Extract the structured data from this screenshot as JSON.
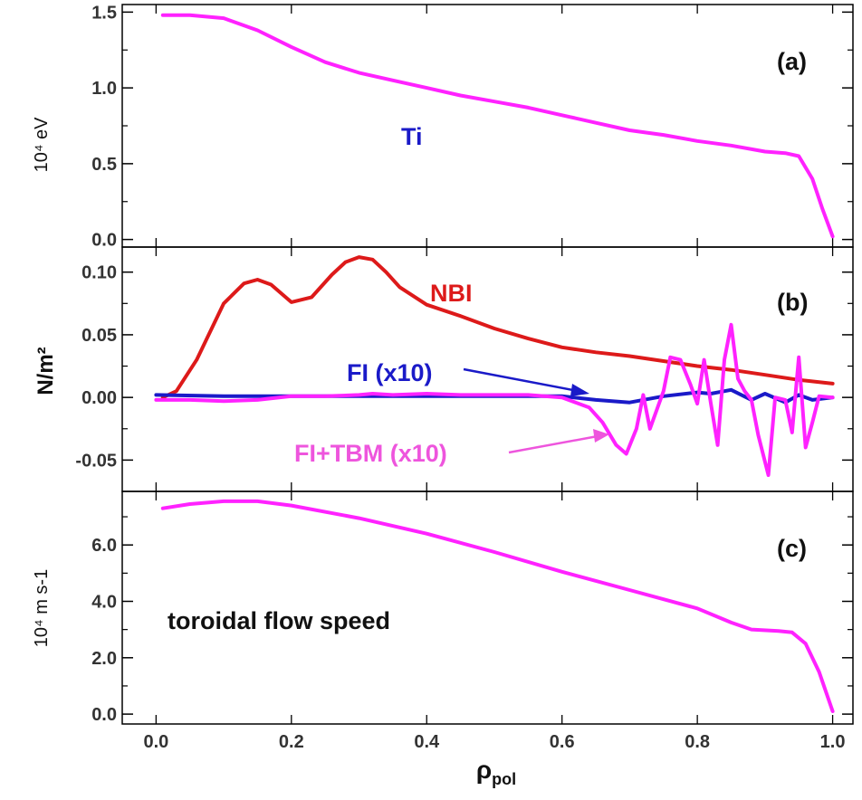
{
  "chart_data": [
    {
      "type": "line",
      "panel_label": "(a)",
      "ylabel": "10⁴  eV",
      "ylim": [
        -0.05,
        1.55
      ],
      "yticks": [
        0.0,
        0.5,
        1.0,
        1.5
      ],
      "ytick_labels": [
        "0.0",
        "0.5",
        "1.0",
        "1.5"
      ],
      "xlim": [
        -0.05,
        1.03
      ],
      "series": [
        {
          "name": "Ti",
          "color": "#ff22ff",
          "x": [
            0.01,
            0.05,
            0.1,
            0.15,
            0.2,
            0.25,
            0.3,
            0.35,
            0.4,
            0.45,
            0.5,
            0.55,
            0.6,
            0.65,
            0.7,
            0.75,
            0.8,
            0.85,
            0.9,
            0.93,
            0.95,
            0.97,
            0.985,
            1.0
          ],
          "y": [
            1.48,
            1.48,
            1.46,
            1.38,
            1.27,
            1.17,
            1.1,
            1.05,
            1.0,
            0.95,
            0.91,
            0.87,
            0.82,
            0.77,
            0.72,
            0.69,
            0.65,
            0.62,
            0.58,
            0.57,
            0.55,
            0.4,
            0.2,
            0.02
          ]
        }
      ],
      "annotations": [
        {
          "text": "Ti",
          "color": "#1a1ac8"
        }
      ]
    },
    {
      "type": "line",
      "panel_label": "(b)",
      "ylabel": "N/m²",
      "ylim": [
        -0.075,
        0.12
      ],
      "yticks": [
        -0.05,
        0.0,
        0.05,
        0.1
      ],
      "ytick_labels": [
        "-0.05",
        "0.00",
        "0.05",
        "0.10"
      ],
      "xlim": [
        -0.05,
        1.03
      ],
      "series": [
        {
          "name": "NBI",
          "color": "#dd1a1a",
          "x": [
            0.01,
            0.03,
            0.06,
            0.1,
            0.13,
            0.15,
            0.17,
            0.2,
            0.23,
            0.26,
            0.28,
            0.3,
            0.32,
            0.34,
            0.36,
            0.4,
            0.45,
            0.5,
            0.55,
            0.6,
            0.65,
            0.7,
            0.75,
            0.8,
            0.85,
            0.9,
            0.95,
            1.0
          ],
          "y": [
            0.0,
            0.005,
            0.03,
            0.075,
            0.091,
            0.094,
            0.09,
            0.076,
            0.08,
            0.098,
            0.108,
            0.112,
            0.11,
            0.1,
            0.088,
            0.074,
            0.065,
            0.055,
            0.047,
            0.04,
            0.036,
            0.033,
            0.029,
            0.025,
            0.022,
            0.018,
            0.014,
            0.011
          ]
        },
        {
          "name": "FI (x10)",
          "color": "#1a1ac8",
          "x": [
            0.0,
            0.1,
            0.2,
            0.3,
            0.4,
            0.5,
            0.55,
            0.6,
            0.65,
            0.7,
            0.75,
            0.8,
            0.82,
            0.85,
            0.88,
            0.9,
            0.93,
            0.95,
            0.97,
            1.0
          ],
          "y": [
            0.002,
            0.001,
            0.001,
            0.001,
            0.001,
            0.001,
            0.001,
            0.001,
            -0.002,
            -0.004,
            0.001,
            0.004,
            0.003,
            0.006,
            -0.002,
            0.003,
            -0.004,
            0.002,
            -0.002,
            0.0
          ]
        },
        {
          "name": "FI+TBM (x10)",
          "color": "#ff22ff",
          "x": [
            0.0,
            0.05,
            0.1,
            0.15,
            0.2,
            0.25,
            0.3,
            0.32,
            0.35,
            0.4,
            0.45,
            0.5,
            0.55,
            0.6,
            0.62,
            0.64,
            0.66,
            0.68,
            0.695,
            0.71,
            0.72,
            0.73,
            0.75,
            0.76,
            0.775,
            0.79,
            0.8,
            0.81,
            0.82,
            0.83,
            0.84,
            0.85,
            0.86,
            0.87,
            0.88,
            0.89,
            0.905,
            0.915,
            0.93,
            0.94,
            0.95,
            0.96,
            0.97,
            0.98,
            1.0
          ],
          "y": [
            -0.002,
            -0.002,
            -0.003,
            -0.002,
            0.001,
            0.001,
            0.002,
            0.003,
            0.002,
            0.003,
            0.002,
            0.002,
            0.002,
            0.0,
            -0.004,
            -0.008,
            -0.02,
            -0.038,
            -0.045,
            -0.025,
            0.002,
            -0.025,
            0.005,
            0.032,
            0.03,
            0.01,
            -0.005,
            0.03,
            -0.005,
            -0.038,
            0.03,
            0.058,
            0.015,
            0.005,
            -0.002,
            -0.03,
            -0.062,
            0.0,
            -0.002,
            -0.028,
            0.032,
            -0.04,
            -0.02,
            0.001,
            0.0
          ]
        }
      ],
      "annotations": [
        {
          "text": "NBI",
          "color": "#dd1a1a"
        },
        {
          "text": "FI (x10)",
          "color": "#1a1ac8"
        },
        {
          "text": "FI+TBM (x10)",
          "color": "#ee55dd"
        }
      ]
    },
    {
      "type": "line",
      "panel_label": "(c)",
      "ylabel": "10⁴   m s-1",
      "ylim": [
        -0.35,
        7.9
      ],
      "yticks": [
        0.0,
        2.0,
        4.0,
        6.0
      ],
      "ytick_labels": [
        "0.0",
        "2.0",
        "4.0",
        "6.0"
      ],
      "xlim": [
        -0.05,
        1.03
      ],
      "xlabel": "ρpol",
      "xticks": [
        0.0,
        0.2,
        0.4,
        0.6,
        0.8,
        1.0
      ],
      "xtick_labels": [
        "0.0",
        "0.2",
        "0.4",
        "0.6",
        "0.8",
        "1.0"
      ],
      "series": [
        {
          "name": "toroidal flow speed",
          "color": "#ff22ff",
          "x": [
            0.01,
            0.05,
            0.1,
            0.15,
            0.2,
            0.3,
            0.4,
            0.5,
            0.6,
            0.7,
            0.8,
            0.85,
            0.88,
            0.92,
            0.94,
            0.96,
            0.98,
            1.0
          ],
          "y": [
            7.3,
            7.45,
            7.55,
            7.55,
            7.4,
            6.95,
            6.4,
            5.75,
            5.05,
            4.4,
            3.75,
            3.25,
            3.0,
            2.95,
            2.9,
            2.5,
            1.5,
            0.1
          ]
        }
      ],
      "annotations": [
        {
          "text": "toroidal flow speed",
          "color": "#111111"
        }
      ]
    }
  ]
}
